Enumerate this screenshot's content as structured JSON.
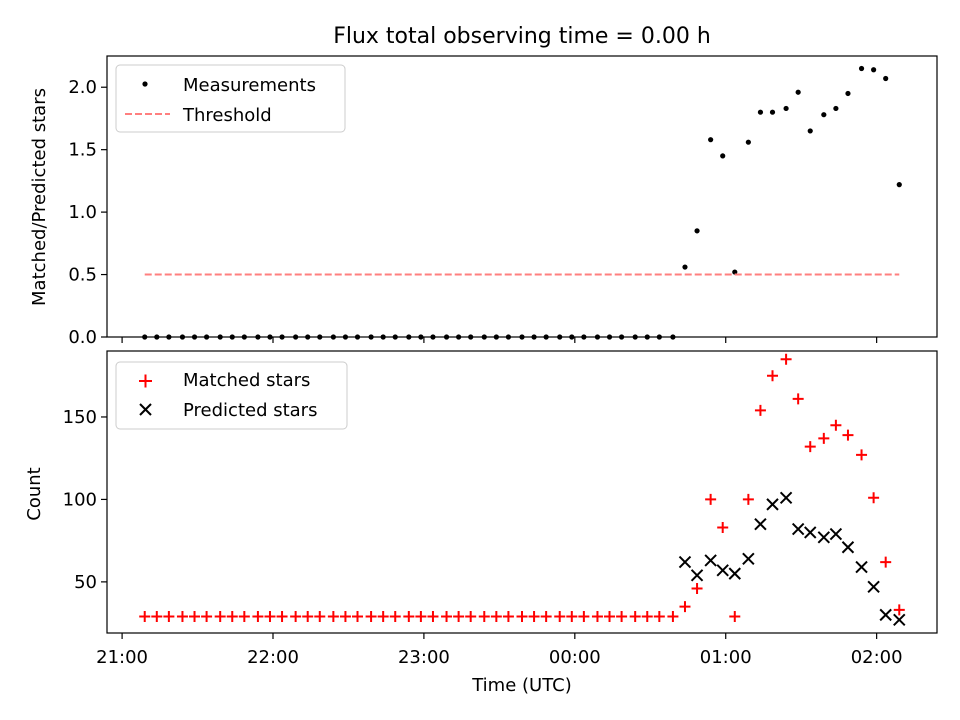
{
  "chart_data": {
    "type": "scatter",
    "title": "Flux total observing time = 0.00 h",
    "xlabel": "Time (UTC)",
    "x_unit": "hours after midnight UTC",
    "xlim": [
      -3.1,
      2.4
    ],
    "x_ticks": [
      {
        "value": -3,
        "label": "21:00"
      },
      {
        "value": -2,
        "label": "22:00"
      },
      {
        "value": -1,
        "label": "23:00"
      },
      {
        "value": 0,
        "label": "00:00"
      },
      {
        "value": 1,
        "label": "01:00"
      },
      {
        "value": 2,
        "label": "02:00"
      }
    ],
    "panels": [
      {
        "id": "ratio",
        "ylabel": "Matched/Predicted stars",
        "ylim": [
          0,
          2.25
        ],
        "y_ticks": [
          0.0,
          0.5,
          1.0,
          1.5,
          2.0
        ],
        "y_tick_labels": [
          "0.0",
          "0.5",
          "1.0",
          "1.5",
          "2.0"
        ],
        "legend_position": "upper-left",
        "series": [
          {
            "name": "Measurements",
            "marker": "dot",
            "color": "#000000",
            "x": [
              -2.85,
              -2.77,
              -2.69,
              -2.6,
              -2.52,
              -2.44,
              -2.35,
              -2.27,
              -2.19,
              -2.1,
              -2.02,
              -1.94,
              -1.85,
              -1.77,
              -1.69,
              -1.6,
              -1.52,
              -1.44,
              -1.35,
              -1.27,
              -1.19,
              -1.1,
              -1.02,
              -0.94,
              -0.85,
              -0.77,
              -0.69,
              -0.6,
              -0.52,
              -0.44,
              -0.35,
              -0.27,
              -0.19,
              -0.1,
              -0.02,
              0.06,
              0.15,
              0.23,
              0.31,
              0.4,
              0.48,
              0.56,
              0.65,
              0.73,
              0.81,
              0.9,
              0.98,
              1.06,
              1.15,
              1.23,
              1.31,
              1.4,
              1.48,
              1.56,
              1.65,
              1.73,
              1.81,
              1.9,
              1.98,
              2.06,
              2.15
            ],
            "y": [
              0,
              0,
              0,
              0,
              0,
              0,
              0,
              0,
              0,
              0,
              0,
              0,
              0,
              0,
              0,
              0,
              0,
              0,
              0,
              0,
              0,
              0,
              0,
              0,
              0,
              0,
              0,
              0,
              0,
              0,
              0,
              0,
              0,
              0,
              0,
              0,
              0,
              0,
              0,
              0,
              0,
              0,
              0,
              0.56,
              0.85,
              1.58,
              1.45,
              0.52,
              1.56,
              1.8,
              1.8,
              1.83,
              1.96,
              1.65,
              1.78,
              1.83,
              1.95,
              2.15,
              2.14,
              2.07,
              1.22
            ]
          },
          {
            "name": "Threshold",
            "marker": "dashed-line",
            "color": "#ff7f7f",
            "x": [
              -2.85,
              2.15
            ],
            "y": [
              0.5,
              0.5
            ]
          }
        ]
      },
      {
        "id": "counts",
        "ylabel": "Count",
        "ylim": [
          19,
          190
        ],
        "y_ticks": [
          50,
          100,
          150
        ],
        "y_tick_labels": [
          "50",
          "100",
          "150"
        ],
        "legend_position": "upper-left",
        "series": [
          {
            "name": "Matched stars",
            "marker": "plus",
            "color": "#ff0000",
            "x": [
              -2.85,
              -2.77,
              -2.69,
              -2.6,
              -2.52,
              -2.44,
              -2.35,
              -2.27,
              -2.19,
              -2.1,
              -2.02,
              -1.94,
              -1.85,
              -1.77,
              -1.69,
              -1.6,
              -1.52,
              -1.44,
              -1.35,
              -1.27,
              -1.19,
              -1.1,
              -1.02,
              -0.94,
              -0.85,
              -0.77,
              -0.69,
              -0.6,
              -0.52,
              -0.44,
              -0.35,
              -0.27,
              -0.19,
              -0.1,
              -0.02,
              0.06,
              0.15,
              0.23,
              0.31,
              0.4,
              0.48,
              0.56,
              0.65,
              0.73,
              0.81,
              0.9,
              0.98,
              1.06,
              1.15,
              1.23,
              1.31,
              1.4,
              1.48,
              1.56,
              1.65,
              1.73,
              1.81,
              1.9,
              1.98,
              2.06,
              2.15
            ],
            "y": [
              29,
              29,
              29,
              29,
              29,
              29,
              29,
              29,
              29,
              29,
              29,
              29,
              29,
              29,
              29,
              29,
              29,
              29,
              29,
              29,
              29,
              29,
              29,
              29,
              29,
              29,
              29,
              29,
              29,
              29,
              29,
              29,
              29,
              29,
              29,
              29,
              29,
              29,
              29,
              29,
              29,
              29,
              29,
              35,
              46,
              100,
              83,
              29,
              100,
              154,
              175,
              185,
              161,
              132,
              137,
              145,
              139,
              127,
              101,
              62,
              33
            ]
          },
          {
            "name": "Predicted stars",
            "marker": "x",
            "color": "#000000",
            "x": [
              0.73,
              0.81,
              0.9,
              0.98,
              1.06,
              1.15,
              1.23,
              1.31,
              1.4,
              1.48,
              1.56,
              1.65,
              1.73,
              1.81,
              1.9,
              1.98,
              2.06,
              2.15
            ],
            "y": [
              62,
              54,
              63,
              57,
              55,
              64,
              85,
              97,
              101,
              82,
              80,
              77,
              79,
              71,
              59,
              47,
              30,
              27
            ]
          }
        ]
      }
    ]
  }
}
